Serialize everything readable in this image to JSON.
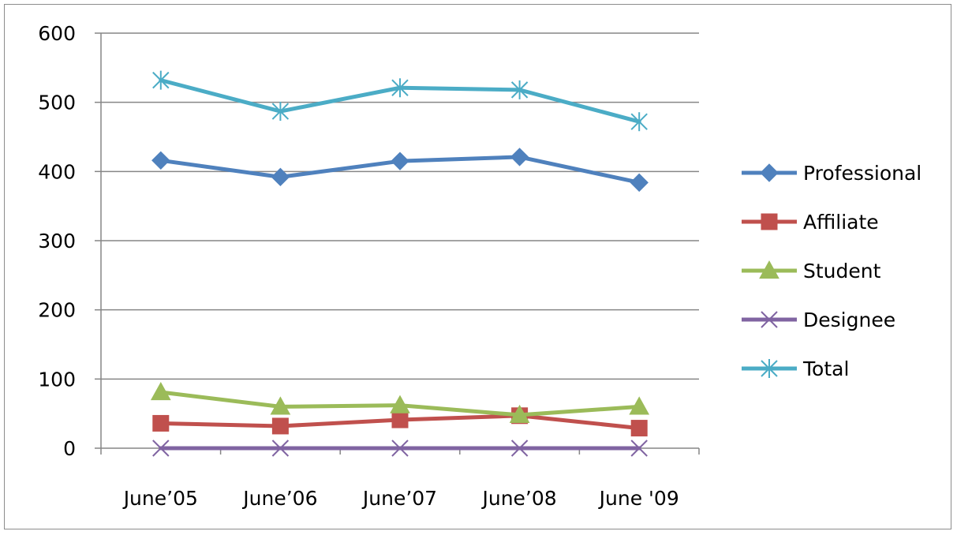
{
  "chart_data": {
    "type": "line",
    "title": "",
    "xlabel": "",
    "ylabel": "",
    "categories": [
      "June’05",
      "June’06",
      "June’07",
      "June’08",
      "June '09"
    ],
    "ylim": [
      0,
      600
    ],
    "yticks": [
      0,
      100,
      200,
      300,
      400,
      500,
      600
    ],
    "grid": true,
    "legend_position": "right",
    "series": [
      {
        "name": "Professional",
        "values": [
          416,
          392,
          415,
          421,
          384
        ],
        "color": "#4F81BD",
        "marker": "diamond"
      },
      {
        "name": "Affiliate",
        "values": [
          36,
          32,
          41,
          47,
          29
        ],
        "color": "#C0504D",
        "marker": "square"
      },
      {
        "name": "Student",
        "values": [
          81,
          60,
          62,
          48,
          60
        ],
        "color": "#9BBB59",
        "marker": "triangle"
      },
      {
        "name": "Designee",
        "values": [
          0,
          0,
          0,
          0,
          0
        ],
        "color": "#8064A2",
        "marker": "x"
      },
      {
        "name": "Total",
        "values": [
          532,
          487,
          521,
          518,
          472
        ],
        "color": "#4BACC6",
        "marker": "asterisk"
      }
    ]
  }
}
